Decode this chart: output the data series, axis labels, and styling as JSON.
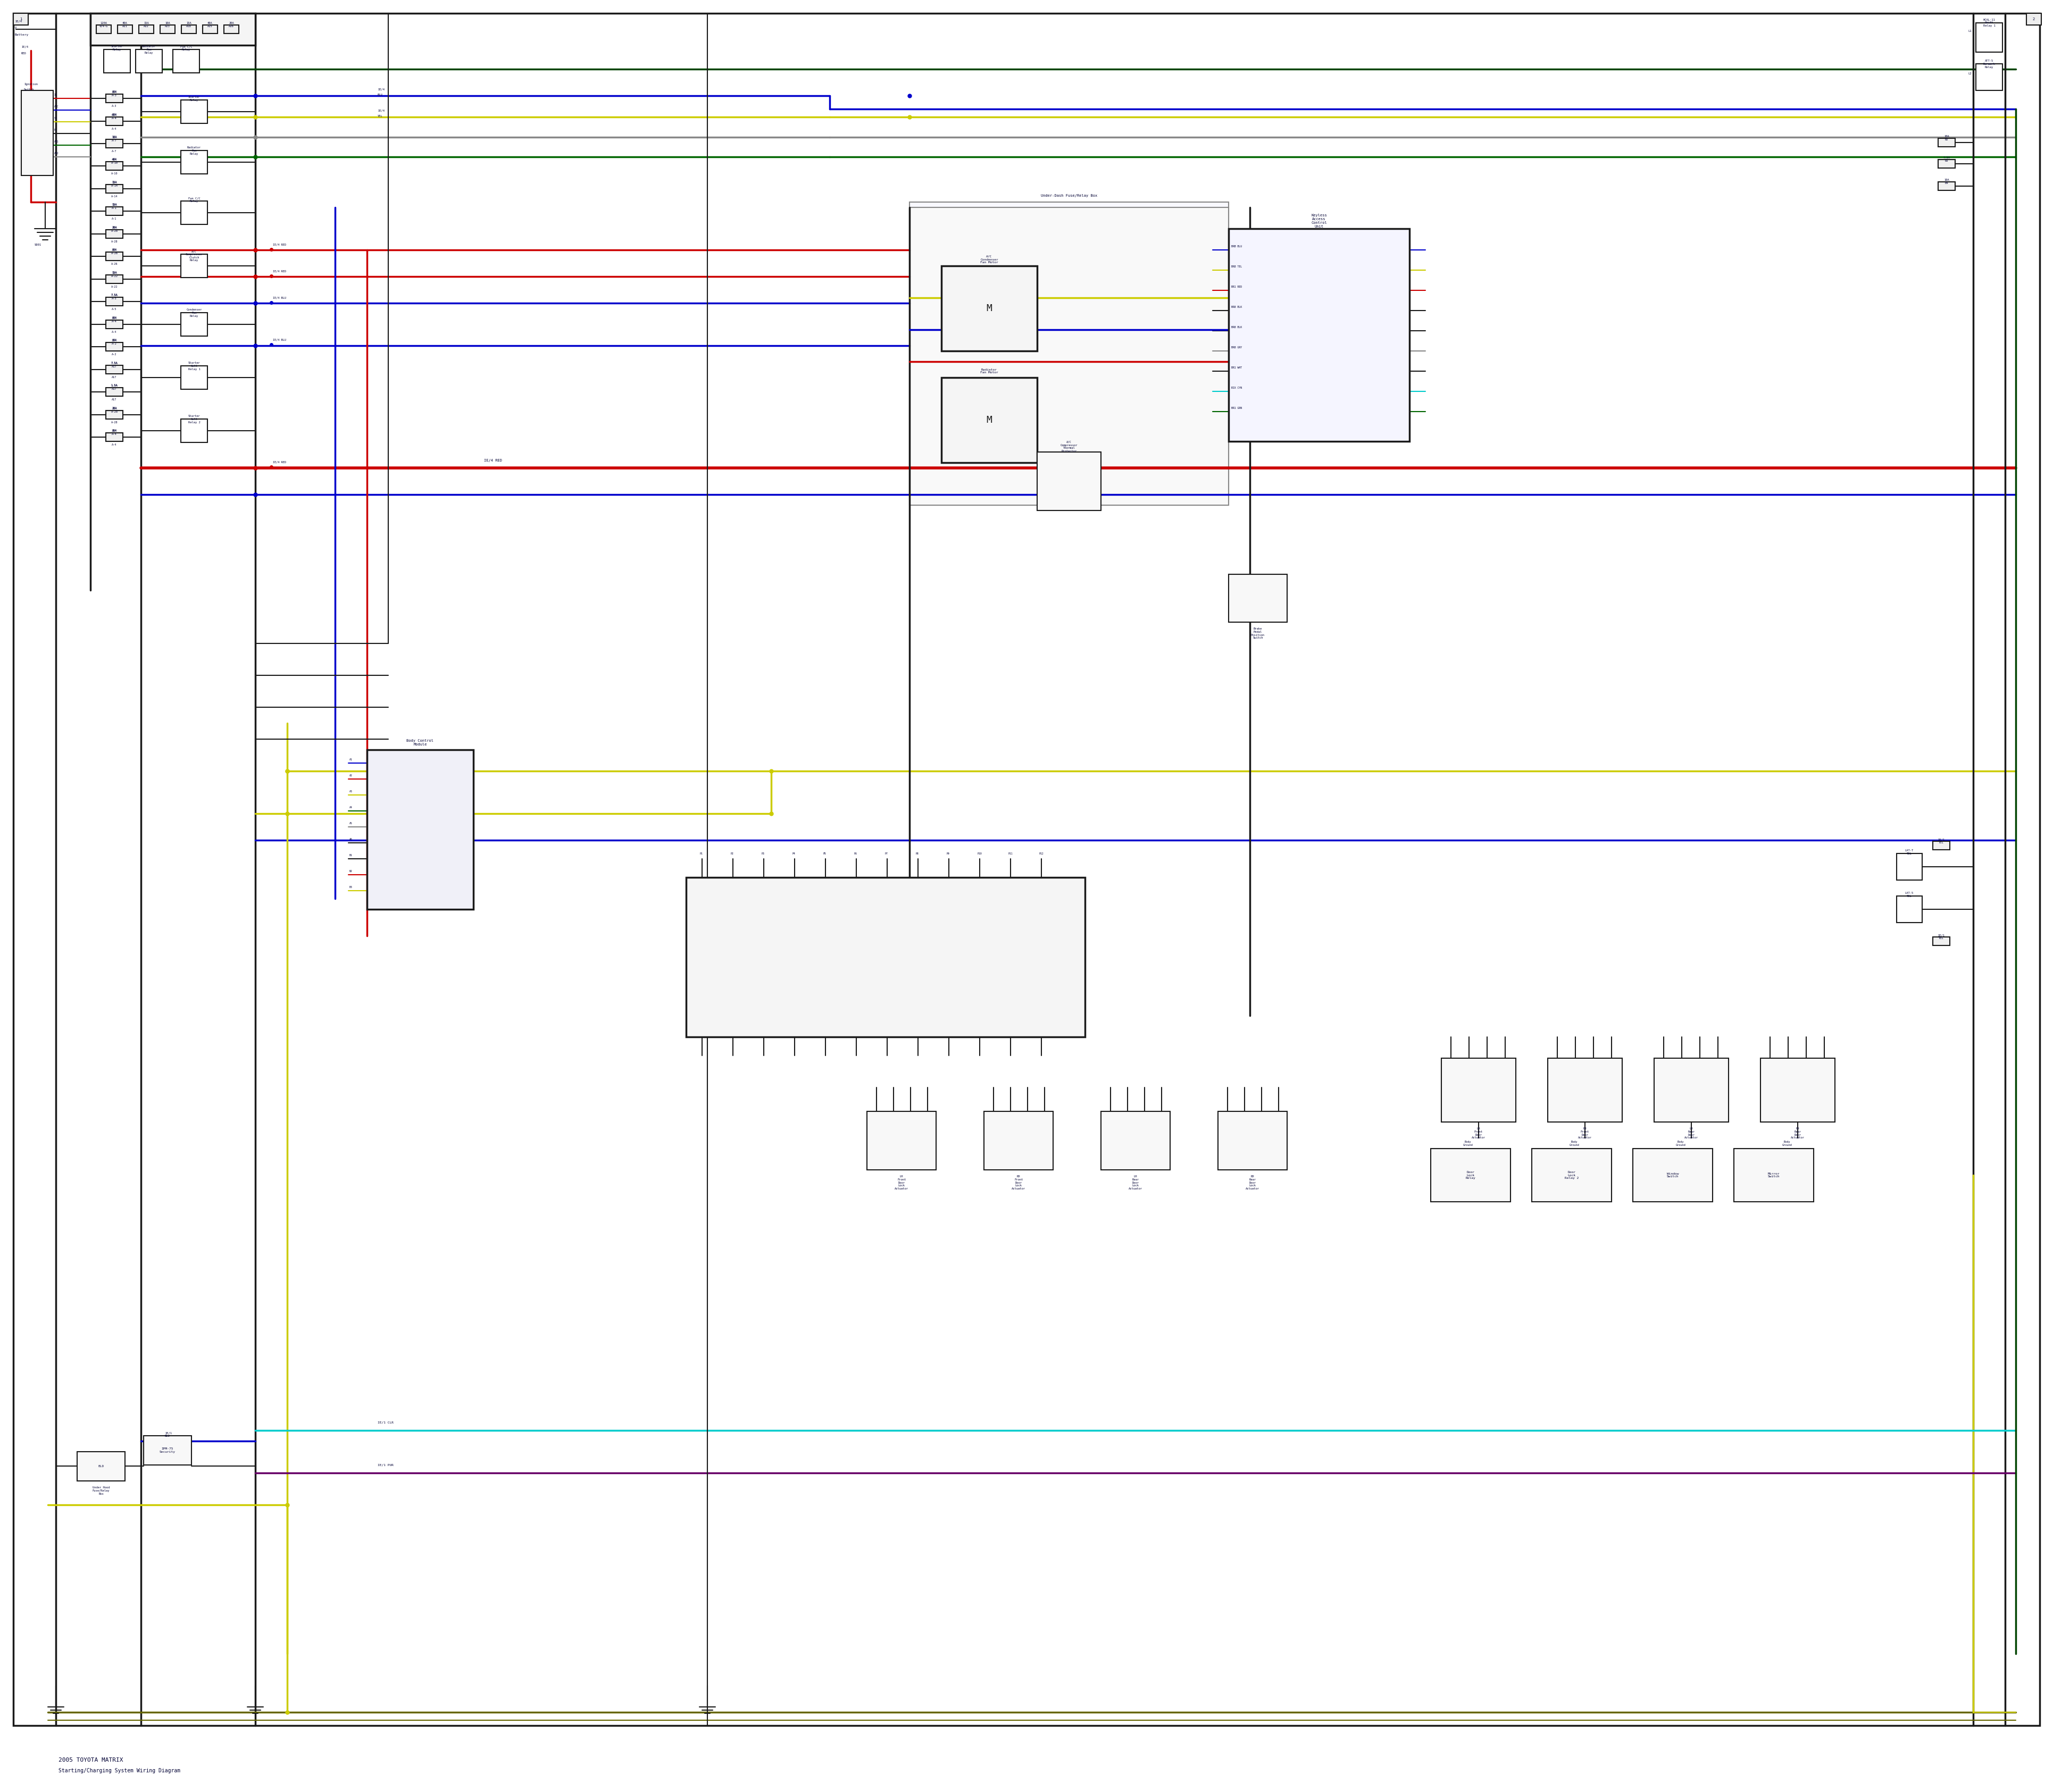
{
  "background_color": "#ffffff",
  "fig_width": 38.4,
  "fig_height": 33.5,
  "wire_colors": {
    "black": "#1a1a1a",
    "red": "#cc0000",
    "blue": "#0000cc",
    "yellow": "#cccc00",
    "green": "#006600",
    "gray": "#888888",
    "dark_green": "#004400",
    "cyan": "#00cccc",
    "purple": "#660066",
    "olive": "#666600"
  }
}
